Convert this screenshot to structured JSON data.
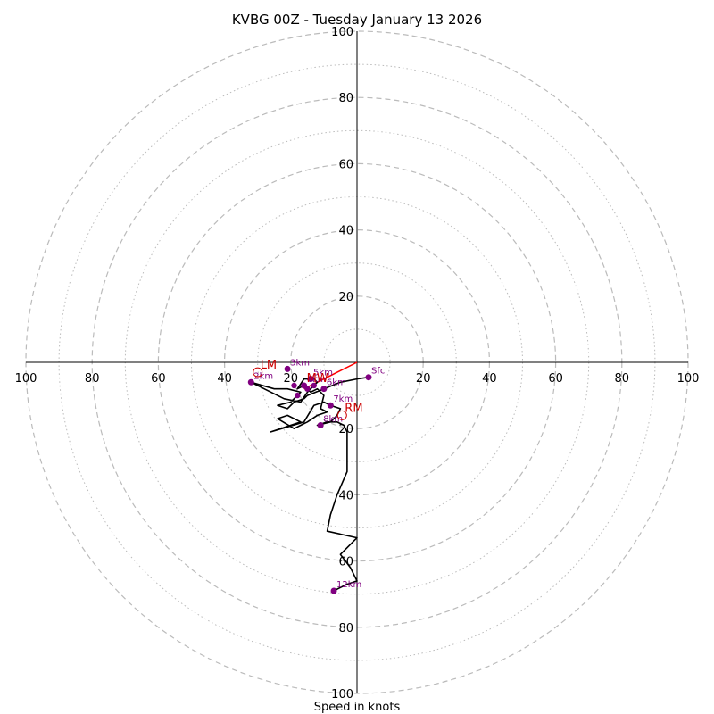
{
  "chart_data": {
    "type": "hodograph",
    "title": "KVBG 00Z - Tuesday January 13 2026",
    "xlabel": "Speed in knots",
    "range": [
      -100,
      100
    ],
    "major_rings": [
      20,
      40,
      60,
      80,
      100
    ],
    "minor_rings": [
      10,
      30,
      50,
      70,
      90
    ],
    "tick_labels": {
      "left": [
        "100",
        "80",
        "60",
        "40",
        "20"
      ],
      "right": [
        "20",
        "40",
        "60",
        "80",
        "100"
      ],
      "top": [
        "20",
        "40",
        "60",
        "80",
        "100"
      ],
      "bottom": [
        "20",
        "40",
        "60",
        "80",
        "100"
      ]
    },
    "hodograph_line": [
      [
        3.5,
        -4.5
      ],
      [
        0,
        -5
      ],
      [
        -5,
        -6
      ],
      [
        -10,
        -8
      ],
      [
        -15,
        -10
      ],
      [
        -16,
        -11
      ],
      [
        -19,
        -12
      ],
      [
        -21,
        -14
      ],
      [
        -24,
        -13
      ],
      [
        -20,
        -12
      ],
      [
        -17,
        -9
      ],
      [
        -21,
        -8
      ],
      [
        -25,
        -8
      ],
      [
        -32,
        -6
      ],
      [
        -22,
        -11
      ],
      [
        -17,
        -12
      ],
      [
        -15,
        -9
      ],
      [
        -12,
        -6
      ],
      [
        -13,
        -5
      ],
      [
        -16,
        -5
      ],
      [
        -18,
        -8
      ],
      [
        -16,
        -7
      ],
      [
        -14,
        -9
      ],
      [
        -12,
        -8
      ],
      [
        -10,
        -10
      ],
      [
        -11,
        -14
      ],
      [
        -9,
        -15
      ],
      [
        -12,
        -16
      ],
      [
        -15,
        -18
      ],
      [
        -17,
        -19
      ],
      [
        -19,
        -20
      ],
      [
        -24,
        -17
      ],
      [
        -21,
        -16
      ],
      [
        -17,
        -18
      ],
      [
        -26,
        -21
      ],
      [
        -16,
        -18
      ],
      [
        -13,
        -13
      ],
      [
        -10,
        -12
      ],
      [
        -8,
        -13
      ],
      [
        -5,
        -14
      ],
      [
        -6,
        -16
      ],
      [
        -8,
        -18
      ],
      [
        -12,
        -19
      ],
      [
        -9,
        -18
      ],
      [
        -6,
        -18
      ],
      [
        -4,
        -19
      ],
      [
        -3,
        -21
      ],
      [
        -3,
        -24
      ],
      [
        -3,
        -27
      ],
      [
        -3,
        -33
      ],
      [
        -6,
        -40
      ],
      [
        -8,
        -46
      ],
      [
        -9,
        -51
      ],
      [
        0,
        -53
      ],
      [
        -5,
        -58
      ],
      [
        -2,
        -62
      ],
      [
        0,
        -66
      ],
      [
        -3,
        -67
      ],
      [
        -7,
        -69
      ]
    ],
    "height_points": [
      {
        "label": "Sfc",
        "u": 3.5,
        "v": -4.5
      },
      {
        "label": "2km",
        "u": -32,
        "v": -6
      },
      {
        "label": "3km",
        "u": -21,
        "v": -2
      },
      {
        "label": "4km",
        "u": -16,
        "v": -7
      },
      {
        "label": "5km",
        "u": -14,
        "v": -5
      },
      {
        "label": "6km",
        "u": -10,
        "v": -8
      },
      {
        "label": "7km",
        "u": -8,
        "v": -13
      },
      {
        "label": "8km",
        "u": -11,
        "v": -19
      },
      {
        "label": "12km",
        "u": -7,
        "v": -69
      }
    ],
    "extra_points": [
      {
        "u": -19,
        "v": -7
      },
      {
        "u": -15,
        "v": -8
      },
      {
        "u": -18,
        "v": -10
      },
      {
        "u": -13,
        "v": -7
      }
    ],
    "storm_motion": [
      {
        "label": "LM",
        "u": -30,
        "v": -3
      },
      {
        "label": "RM",
        "u": -4.5,
        "v": -16
      }
    ],
    "mean_wind": {
      "label": "MW",
      "u": -16,
      "v": -7
    },
    "shear_vector": {
      "from_u": 0,
      "from_v": 0,
      "to_u": -16,
      "to_v": -8,
      "color": "#ff0000"
    },
    "colors": {
      "ring": "#bbbbbb",
      "trace": "#000000",
      "points": "#800080",
      "labels": "#800080",
      "motion": "#cc0000",
      "axes": "#000000"
    }
  }
}
